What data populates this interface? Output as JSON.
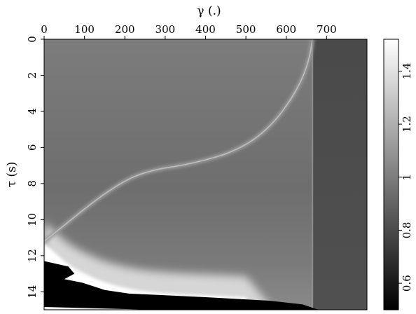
{
  "chart_data": {
    "type": "heatmap",
    "title": "",
    "xlabel": "γ (.)",
    "ylabel": "τ (s)",
    "x_axis_position": "top",
    "xlim": [
      0,
      800
    ],
    "ylim": [
      0,
      15
    ],
    "y_inverted": true,
    "x_ticks": [
      0,
      100,
      200,
      300,
      400,
      500,
      600,
      700
    ],
    "x_tick_labels": [
      "0",
      "100",
      "200",
      "300",
      "400",
      "500",
      "600",
      "700"
    ],
    "y_ticks": [
      0,
      2,
      4,
      6,
      8,
      10,
      12,
      14
    ],
    "y_tick_labels": [
      "0",
      "2",
      "4",
      "6",
      "8",
      "10",
      "12",
      "14"
    ],
    "colorbar": {
      "range": [
        0.5,
        1.52
      ],
      "ticks": [
        0.6,
        0.8,
        1,
        1.2,
        1.4
      ],
      "tick_labels": [
        "0.6",
        "0.8",
        "1",
        "1.2",
        "1.4"
      ],
      "colormap": "grayscale (black = low, white = high)"
    },
    "background_value": 0.92,
    "right_panel": {
      "x_from": 665,
      "value": 0.78
    },
    "bright_curve": {
      "value": 1.25,
      "points": [
        {
          "x": 0,
          "y": 11.2
        },
        {
          "x": 40,
          "y": 10.5
        },
        {
          "x": 100,
          "y": 9.4
        },
        {
          "x": 160,
          "y": 8.4
        },
        {
          "x": 220,
          "y": 7.6
        },
        {
          "x": 280,
          "y": 7.2
        },
        {
          "x": 340,
          "y": 7.0
        },
        {
          "x": 400,
          "y": 6.7
        },
        {
          "x": 460,
          "y": 6.3
        },
        {
          "x": 520,
          "y": 5.6
        },
        {
          "x": 570,
          "y": 4.6
        },
        {
          "x": 610,
          "y": 3.4
        },
        {
          "x": 640,
          "y": 2.2
        },
        {
          "x": 658,
          "y": 1.0
        },
        {
          "x": 665,
          "y": 0
        }
      ]
    },
    "bright_region_lower_left": {
      "value": 1.5,
      "points": [
        {
          "x": 0,
          "y": 11.3
        },
        {
          "x": 30,
          "y": 11.9
        },
        {
          "x": 60,
          "y": 12.5
        },
        {
          "x": 100,
          "y": 13.0
        },
        {
          "x": 150,
          "y": 13.5
        },
        {
          "x": 220,
          "y": 13.9
        },
        {
          "x": 300,
          "y": 14.1
        },
        {
          "x": 400,
          "y": 14.2
        },
        {
          "x": 500,
          "y": 14.3
        }
      ]
    },
    "dark_region_lower_left": {
      "value": 0.5,
      "points": [
        {
          "x": 0,
          "y": 12.3
        },
        {
          "x": 60,
          "y": 12.6
        },
        {
          "x": 75,
          "y": 13.0
        },
        {
          "x": 50,
          "y": 13.3
        },
        {
          "x": 95,
          "y": 13.5
        },
        {
          "x": 150,
          "y": 13.9
        },
        {
          "x": 210,
          "y": 14.1
        },
        {
          "x": 400,
          "y": 14.3
        },
        {
          "x": 560,
          "y": 14.5
        },
        {
          "x": 640,
          "y": 14.7
        },
        {
          "x": 680,
          "y": 15.0
        }
      ]
    }
  }
}
